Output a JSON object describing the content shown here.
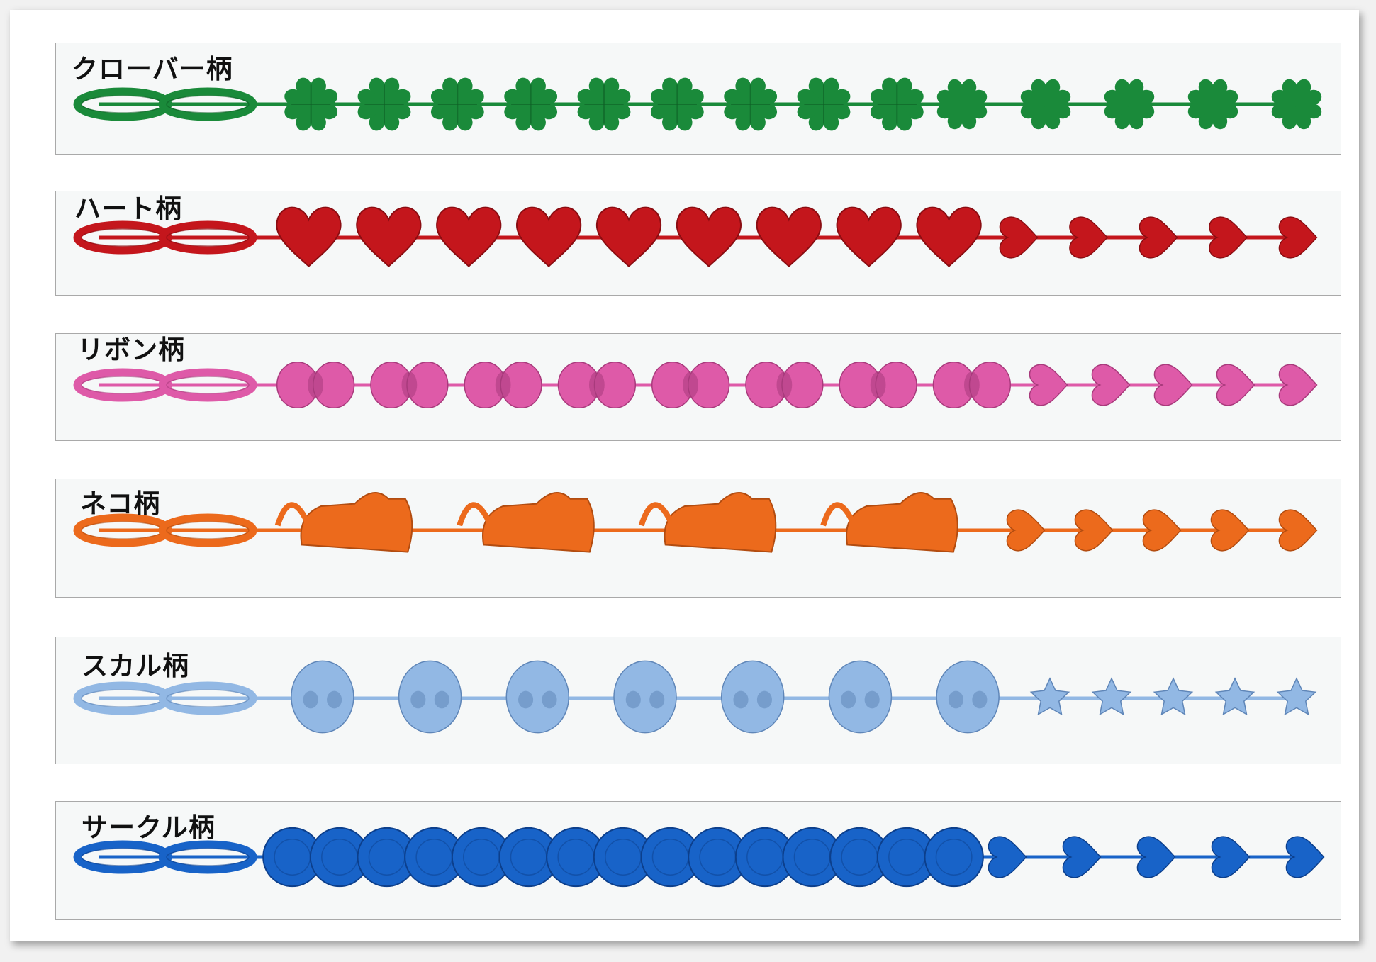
{
  "bracelets": [
    {
      "label": "クローバー柄",
      "motif": "clover",
      "tail": "clover",
      "color": "#1a8a3a",
      "dark": "#0e5f25",
      "main_count": 9,
      "tail_count": 5
    },
    {
      "label": "ハート柄",
      "motif": "heart",
      "tail": "heart",
      "color": "#c4161c",
      "dark": "#8a0d12",
      "main_count": 9,
      "tail_count": 5
    },
    {
      "label": "リボン柄",
      "motif": "ribbon",
      "tail": "heart",
      "color": "#de5aa8",
      "dark": "#a83a7c",
      "main_count": 8,
      "tail_count": 5
    },
    {
      "label": "ネコ柄",
      "motif": "cat",
      "tail": "heart",
      "color": "#ec6a1c",
      "dark": "#b24c10",
      "main_count": 4,
      "tail_count": 5
    },
    {
      "label": "スカル柄",
      "motif": "skull",
      "tail": "star",
      "color": "#92b8e4",
      "dark": "#5f86b8",
      "main_count": 7,
      "tail_count": 5
    },
    {
      "label": "サークル柄",
      "motif": "circle",
      "tail": "heart",
      "color": "#1863c8",
      "dark": "#0c3f8c",
      "main_count": 15,
      "tail_count": 5
    }
  ]
}
